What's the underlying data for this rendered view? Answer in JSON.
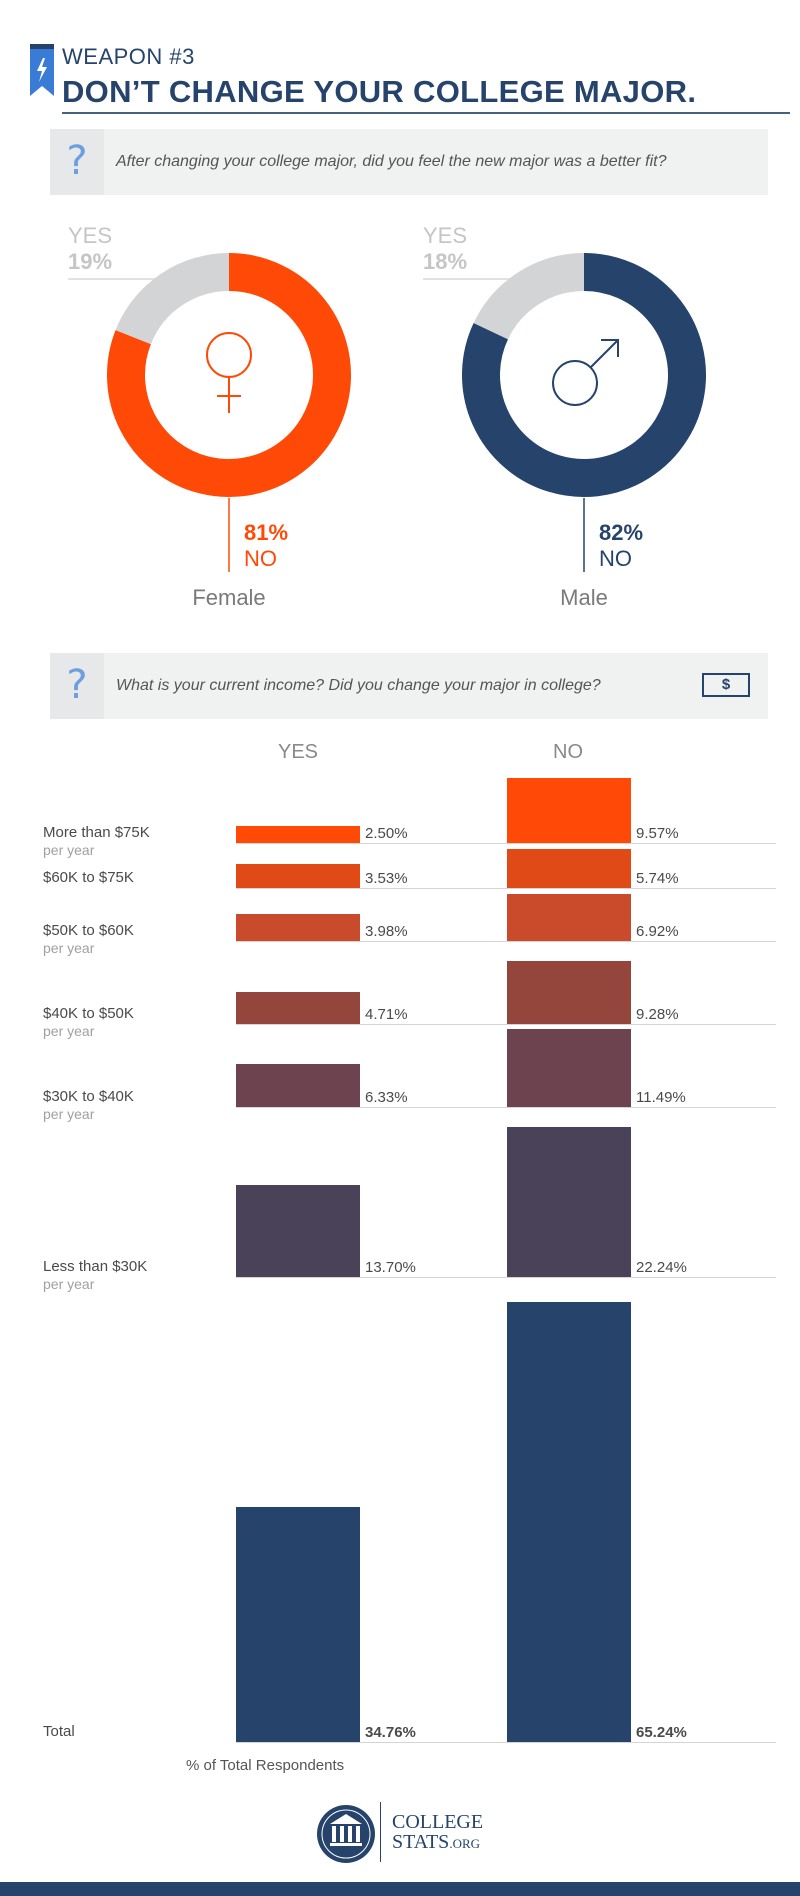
{
  "header": {
    "weapon_label": "WEAPON #3",
    "headline": "DON’T CHANGE YOUR COLLEGE MAJOR."
  },
  "question1": {
    "icon": "question-mark",
    "text": "After changing your college major, did you feel the new major was a better fit?"
  },
  "question2": {
    "icon": "question-mark",
    "text": "What is your current income? Did you change your major in college?",
    "bill_icon": "dollar-bill",
    "bill_symbol": "$"
  },
  "chart_data": [
    {
      "type": "pie",
      "name": "Female",
      "slices": [
        {
          "label": "YES",
          "value": 19,
          "value_label": "19%",
          "color": "#d3d4d6"
        },
        {
          "label": "NO",
          "value": 81,
          "value_label": "81%",
          "color": "#ff4a07"
        }
      ],
      "symbol": "♀",
      "caption": "Female"
    },
    {
      "type": "pie",
      "name": "Male",
      "slices": [
        {
          "label": "YES",
          "value": 18,
          "value_label": "18%",
          "color": "#d3d4d6"
        },
        {
          "label": "NO",
          "value": 82,
          "value_label": "82%",
          "color": "#26446b"
        }
      ],
      "symbol": "♂",
      "caption": "Male"
    },
    {
      "type": "bar",
      "columns": [
        "YES",
        "NO"
      ],
      "categories": [
        {
          "label": "More than $75K",
          "sub": "per year",
          "yes": 2.5,
          "yes_label": "2.50%",
          "no": 9.57,
          "no_label": "9.57%",
          "color": "#ff4a07"
        },
        {
          "label": "$60K to $75K",
          "sub": "",
          "yes": 3.53,
          "yes_label": "3.53%",
          "no": 5.74,
          "no_label": "5.74%",
          "color": "#e04a17"
        },
        {
          "label": "$50K to $60K",
          "sub": "per year",
          "yes": 3.98,
          "yes_label": "3.98%",
          "no": 6.92,
          "no_label": "6.92%",
          "color": "#c94b2c"
        },
        {
          "label": "$40K to $50K",
          "sub": "per year",
          "yes": 4.71,
          "yes_label": "4.71%",
          "no": 9.28,
          "no_label": "9.28%",
          "color": "#95463c"
        },
        {
          "label": "$30K to $40K",
          "sub": "per year",
          "yes": 6.33,
          "yes_label": "6.33%",
          "no": 11.49,
          "no_label": "11.49%",
          "color": "#6e4350"
        },
        {
          "label": "Less than $30K",
          "sub": "per year",
          "yes": 13.7,
          "yes_label": "13.70%",
          "no": 22.24,
          "no_label": "22.24%",
          "color": "#4a4259"
        },
        {
          "label": "Total",
          "sub": "",
          "yes": 34.76,
          "yes_label": "34.76%",
          "no": 65.24,
          "no_label": "65.24%",
          "color": "#26446b"
        }
      ],
      "note": "% of Total Respondents"
    }
  ],
  "footer": {
    "logo_line1": "COLLEGE",
    "logo_line2": "STATS",
    "logo_suffix": ".ORG"
  }
}
